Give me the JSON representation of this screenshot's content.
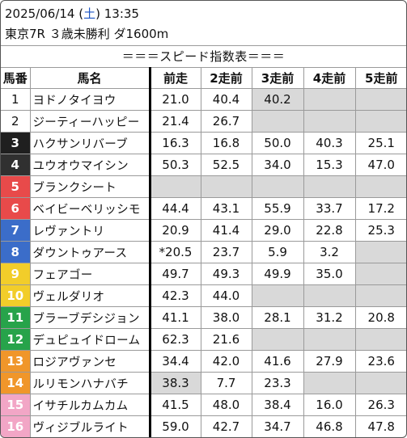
{
  "header": {
    "date": "2025/06/14",
    "weekday_open": " (",
    "weekday": "土",
    "weekday_close": ") ",
    "time": "13:35",
    "race": "東京7R ３歳未勝利 ダ1600m"
  },
  "table": {
    "title": "＝＝＝スピード指数表＝＝＝",
    "columns": [
      "馬番",
      "馬名",
      "前走",
      "2走前",
      "3走前",
      "4走前",
      "5走前"
    ],
    "colors": {
      "frame1": "#ffffff",
      "frame2": "#ffffff",
      "frame3": "#1f1f1f",
      "frame4": "#303030",
      "frame5": "#e84a4a",
      "frame6": "#e84a4a",
      "frame7": "#3b6dc9",
      "frame8": "#3b6dc9",
      "frame9": "#f2cd2a",
      "frame10": "#f2cd2a",
      "frame11": "#27a34a",
      "frame12": "#27a34a",
      "frame13": "#f0962a",
      "frame14": "#f0962a",
      "frame15": "#f2a6c6",
      "frame16": "#f2a6c6",
      "blank": "#d9d9d9"
    },
    "rows": [
      {
        "num": "1",
        "name": "ヨドノタイヨウ",
        "s1": "21.0",
        "s2": "40.4",
        "s3": "40.2",
        "s4": "",
        "s5": ""
      },
      {
        "num": "2",
        "name": "ジーティーハッピー",
        "s1": "21.4",
        "s2": "26.7",
        "s3": "",
        "s4": "",
        "s5": ""
      },
      {
        "num": "3",
        "name": "ハクサンリバーブ",
        "s1": "16.3",
        "s2": "16.8",
        "s3": "50.0",
        "s4": "40.3",
        "s5": "25.1"
      },
      {
        "num": "4",
        "name": "ユウオウマイシン",
        "s1": "50.3",
        "s2": "52.5",
        "s3": "34.0",
        "s4": "15.3",
        "s5": "47.0"
      },
      {
        "num": "5",
        "name": "ブランクシート",
        "s1": "",
        "s2": "",
        "s3": "",
        "s4": "",
        "s5": ""
      },
      {
        "num": "6",
        "name": "ベイビーベリッシモ",
        "s1": "44.4",
        "s2": "43.1",
        "s3": "55.9",
        "s4": "33.7",
        "s5": "17.2"
      },
      {
        "num": "7",
        "name": "レヴァントリ",
        "s1": "20.9",
        "s2": "41.4",
        "s3": "29.0",
        "s4": "22.8",
        "s5": "25.3"
      },
      {
        "num": "8",
        "name": "ダウントゥアース",
        "s1": "*20.5",
        "s2": "23.7",
        "s3": "5.9",
        "s4": "3.2",
        "s5": ""
      },
      {
        "num": "9",
        "name": "フェアゴー",
        "s1": "49.7",
        "s2": "49.3",
        "s3": "49.9",
        "s4": "35.0",
        "s5": ""
      },
      {
        "num": "10",
        "name": "ヴェルダリオ",
        "s1": "42.3",
        "s2": "44.0",
        "s3": "",
        "s4": "",
        "s5": ""
      },
      {
        "num": "11",
        "name": "ブラーブデシジョン",
        "s1": "41.1",
        "s2": "38.0",
        "s3": "28.1",
        "s4": "31.2",
        "s5": "20.8"
      },
      {
        "num": "12",
        "name": "デュピュイドローム",
        "s1": "62.3",
        "s2": "21.6",
        "s3": "",
        "s4": "",
        "s5": ""
      },
      {
        "num": "13",
        "name": "ロジアヴァンセ",
        "s1": "34.4",
        "s2": "42.0",
        "s3": "41.6",
        "s4": "27.9",
        "s5": "23.6"
      },
      {
        "num": "14",
        "name": "ルリモンハナバチ",
        "s1": "38.3",
        "s2": "7.7",
        "s3": "23.3",
        "s4": "",
        "s5": ""
      },
      {
        "num": "15",
        "name": "イサチルカムカム",
        "s1": "41.5",
        "s2": "48.0",
        "s3": "38.4",
        "s4": "16.0",
        "s5": "26.3"
      },
      {
        "num": "16",
        "name": "ヴィジブルライト",
        "s1": "59.0",
        "s2": "42.7",
        "s3": "34.7",
        "s4": "46.8",
        "s5": "47.8"
      }
    ],
    "blank_cells": [
      [
        1,
        "s4"
      ],
      [
        1,
        "s5"
      ],
      [
        2,
        "s3"
      ],
      [
        2,
        "s4"
      ],
      [
        2,
        "s5"
      ],
      [
        5,
        "s1"
      ],
      [
        5,
        "s2"
      ],
      [
        5,
        "s3"
      ],
      [
        5,
        "s4"
      ],
      [
        5,
        "s5"
      ],
      [
        8,
        "s5"
      ],
      [
        9,
        "s5"
      ],
      [
        10,
        "s3"
      ],
      [
        10,
        "s4"
      ],
      [
        10,
        "s5"
      ],
      [
        12,
        "s3"
      ],
      [
        12,
        "s4"
      ],
      [
        12,
        "s5"
      ],
      [
        14,
        "s4"
      ],
      [
        14,
        "s5"
      ]
    ],
    "gray_value_cells": [
      [
        1,
        "s3"
      ],
      [
        14,
        "s1"
      ]
    ]
  }
}
